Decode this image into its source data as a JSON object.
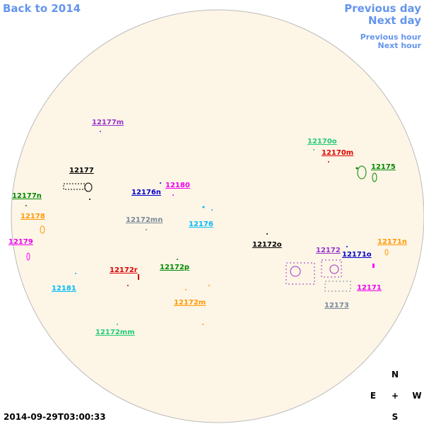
{
  "navigation": {
    "back": "Back to 2014",
    "previous_day": "Previous day",
    "next_day": "Next day",
    "previous_hour": "Previous hour",
    "next_hour": "Next hour"
  },
  "regions": [
    "12177m",
    "12170o",
    "12170m",
    "12175",
    "12177",
    "12180",
    "12176n",
    "12177n",
    "12178",
    "12172mn",
    "12176",
    "12179",
    "12172o",
    "12171n",
    "12172",
    "12171o",
    "12172r",
    "12172p",
    "12181",
    "12171",
    "12172m",
    "12173",
    "12172mm"
  ],
  "compass": {
    "north": "N",
    "east": "E",
    "center": "+",
    "west": "W",
    "south": "S"
  },
  "timestamp": "2014-09-29T03:00:33"
}
